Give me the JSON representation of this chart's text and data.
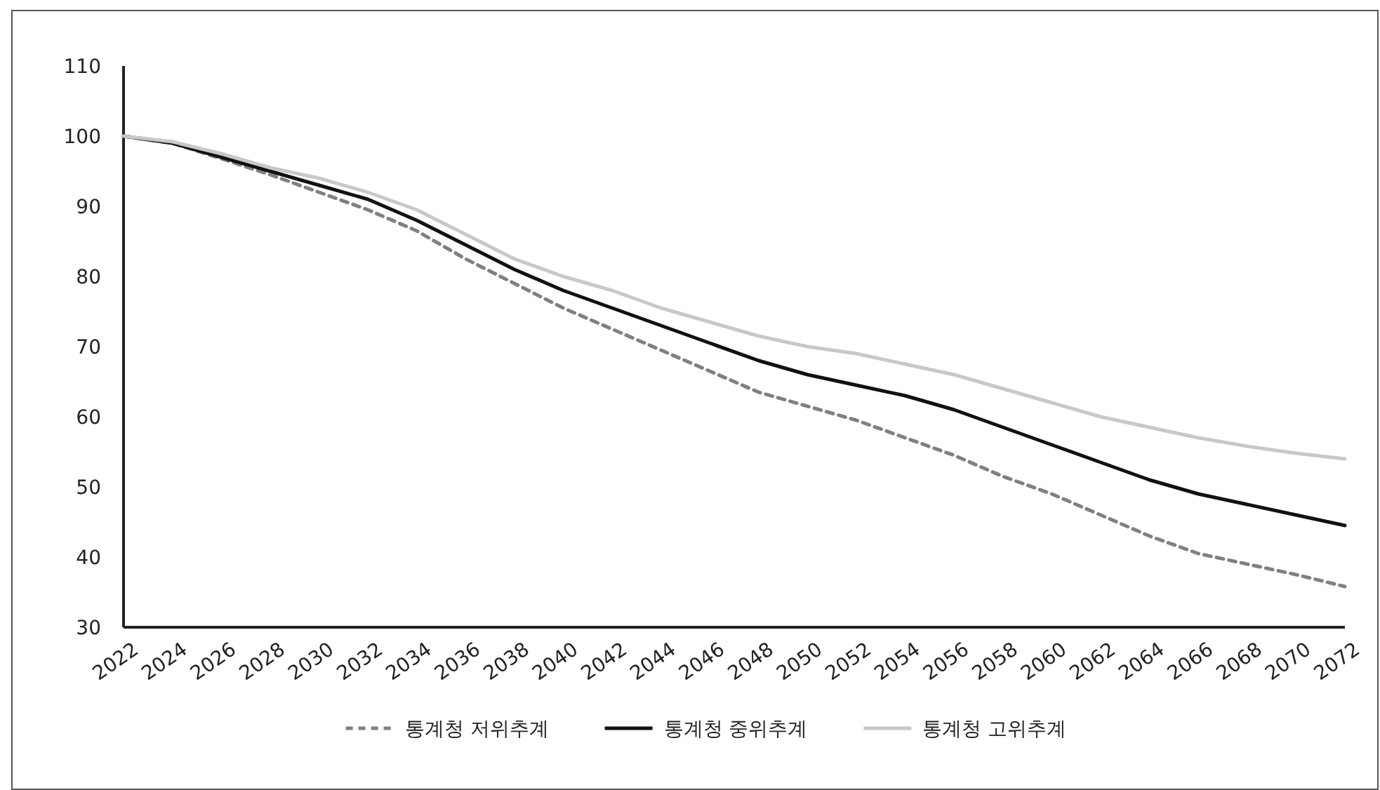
{
  "chart_data": {
    "type": "line",
    "x": [
      2022,
      2024,
      2026,
      2028,
      2030,
      2032,
      2034,
      2036,
      2038,
      2040,
      2042,
      2044,
      2046,
      2048,
      2050,
      2052,
      2054,
      2056,
      2058,
      2060,
      2062,
      2064,
      2066,
      2068,
      2070,
      2072
    ],
    "xlim": [
      2022,
      2072
    ],
    "xticks": [
      2022,
      2024,
      2026,
      2028,
      2030,
      2032,
      2034,
      2036,
      2038,
      2040,
      2042,
      2044,
      2046,
      2048,
      2050,
      2052,
      2054,
      2056,
      2058,
      2060,
      2062,
      2064,
      2066,
      2068,
      2070,
      2072
    ],
    "ylim": [
      30,
      110
    ],
    "yticks": [
      30,
      40,
      50,
      60,
      70,
      80,
      90,
      100,
      110
    ],
    "grid": false,
    "legend": "bottom",
    "marker": "none",
    "series": [
      {
        "name": "통계청 저위추계",
        "color": "#808080",
        "line_style": "dashed",
        "values": [
          100,
          99,
          96.8,
          94.5,
          92,
          89.5,
          86.5,
          82.5,
          79,
          75.5,
          72.5,
          69.5,
          66.5,
          63.5,
          61.5,
          59.5,
          57,
          54.5,
          51.5,
          49,
          46,
          43,
          40.5,
          39,
          37.5,
          35.8
        ]
      },
      {
        "name": "통계청 중위추계",
        "color": "#111111",
        "line_style": "solid",
        "values": [
          100,
          99,
          97,
          95,
          93,
          91,
          88,
          84.5,
          81,
          78,
          75.5,
          73,
          70.5,
          68,
          66,
          64.5,
          63,
          61,
          58.5,
          56,
          53.5,
          51,
          49,
          47.5,
          46,
          44.5
        ]
      },
      {
        "name": "통계청 고위추계",
        "color": "#c8c8c8",
        "line_style": "solid",
        "values": [
          100,
          99.2,
          97.5,
          95.5,
          94,
          92,
          89.5,
          86,
          82.5,
          80,
          78,
          75.5,
          73.5,
          71.5,
          70,
          69,
          67.5,
          66,
          64,
          62,
          60,
          58.5,
          57,
          55.8,
          54.8,
          54
        ]
      }
    ]
  }
}
